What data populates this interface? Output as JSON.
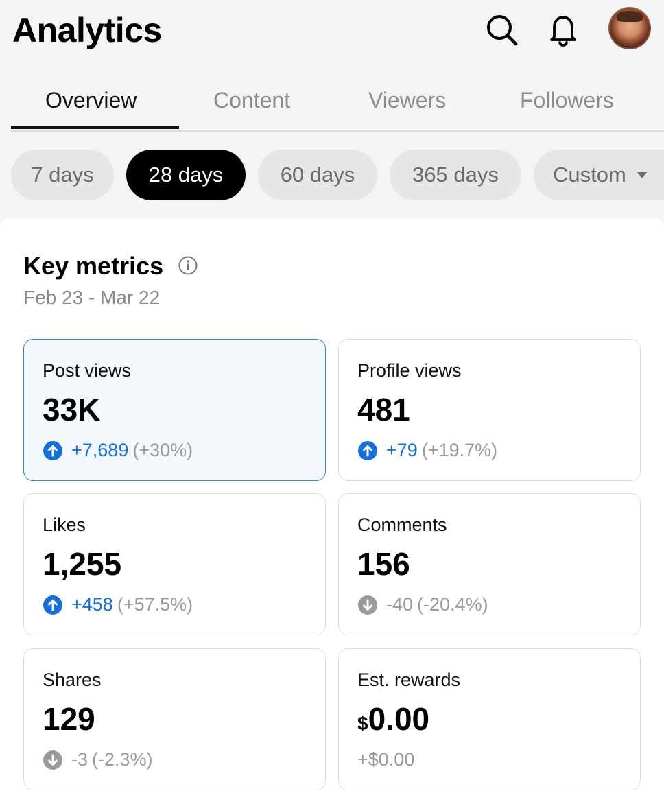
{
  "header": {
    "title": "Analytics",
    "icons": [
      "search-icon",
      "bell-icon"
    ],
    "avatar": "user-avatar"
  },
  "tabs": [
    {
      "label": "Overview",
      "active": true
    },
    {
      "label": "Content",
      "active": false
    },
    {
      "label": "Viewers",
      "active": false
    },
    {
      "label": "Followers",
      "active": false
    }
  ],
  "periods": [
    {
      "label": "7 days",
      "active": false
    },
    {
      "label": "28 days",
      "active": true
    },
    {
      "label": "60 days",
      "active": false
    },
    {
      "label": "365 days",
      "active": false
    },
    {
      "label": "Custom",
      "active": false,
      "dropdown": true
    }
  ],
  "key_metrics": {
    "title": "Key metrics",
    "info_icon": "info-icon",
    "date_range": "Feb 23 - Mar 22",
    "cards": [
      {
        "label": "Post views",
        "value": "33K",
        "delta": "+7,689",
        "pct": "(+30%)",
        "direction": "up",
        "selected": true
      },
      {
        "label": "Profile views",
        "value": "481",
        "delta": "+79",
        "pct": "(+19.7%)",
        "direction": "up"
      },
      {
        "label": "Likes",
        "value": "1,255",
        "delta": "+458",
        "pct": "(+57.5%)",
        "direction": "up"
      },
      {
        "label": "Comments",
        "value": "156",
        "delta": "-40",
        "pct": "(-20.4%)",
        "direction": "down"
      },
      {
        "label": "Shares",
        "value": "129",
        "delta": "-3",
        "pct": "(-2.3%)",
        "direction": "down"
      },
      {
        "label": "Est. rewards",
        "currency": "$",
        "value": "0.00",
        "change": "+$0.00",
        "direction": "none"
      }
    ]
  },
  "colors": {
    "accent_blue": "#1670d6",
    "selected_border": "#3b82c4",
    "selected_bg": "#f3f8fc",
    "muted_text": "#8a8a8a",
    "pill_bg": "#e6e6e6",
    "active_pill_bg": "#000000"
  }
}
